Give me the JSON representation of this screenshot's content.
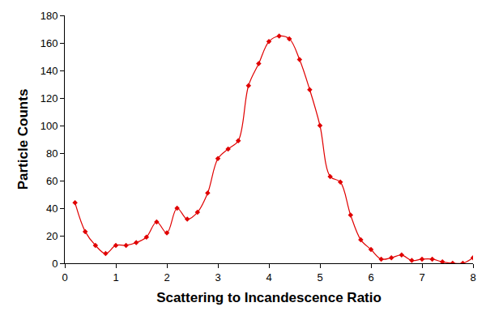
{
  "chart_data": {
    "type": "line",
    "x_label": "Scattering to Incandescence Ratio",
    "y_label": "Particle Counts",
    "x": [
      0.2,
      0.4,
      0.6,
      0.8,
      1.0,
      1.2,
      1.4,
      1.6,
      1.8,
      2.0,
      2.2,
      2.4,
      2.6,
      2.8,
      3.0,
      3.2,
      3.4,
      3.6,
      3.8,
      4.0,
      4.2,
      4.4,
      4.6,
      4.8,
      5.0,
      5.2,
      5.4,
      5.6,
      5.8,
      6.0,
      6.2,
      6.4,
      6.6,
      6.8,
      7.0,
      7.2,
      7.4,
      7.6,
      7.8,
      8.0
    ],
    "values": [
      44,
      23,
      13,
      7,
      13,
      13,
      15,
      19,
      30,
      22,
      40,
      32,
      37,
      51,
      76,
      83,
      89,
      129,
      145,
      161,
      165,
      163,
      148,
      126,
      100,
      63,
      59,
      35,
      17,
      10,
      3,
      4,
      6,
      2,
      3,
      3,
      1,
      0,
      0,
      4
    ],
    "color": "#e00000",
    "marker": "diamond",
    "line_style": "spline",
    "xlim": [
      0,
      8
    ],
    "xticks": [
      0,
      1,
      2,
      3,
      4,
      5,
      6,
      7,
      8
    ],
    "ylim": [
      0,
      180
    ],
    "yticks": [
      0,
      20,
      40,
      60,
      80,
      100,
      120,
      140,
      160,
      180
    ],
    "grid": false
  }
}
